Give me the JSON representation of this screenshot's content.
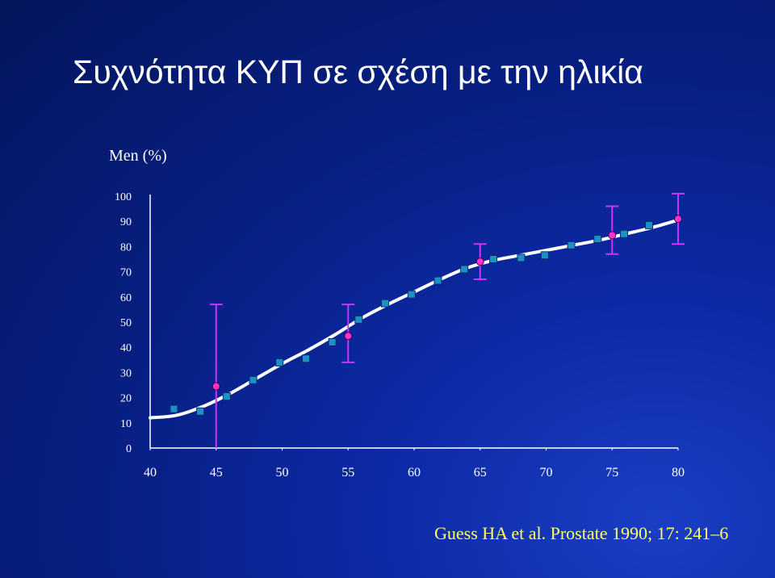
{
  "slide": {
    "title": "Συχνότητα ΚΥΠ σε σχέση με την ηλικία",
    "citation": "Guess HA et al. Prostate 1990; 17: 241–6"
  },
  "colors": {
    "background": "#0a239a",
    "curve": "#ffffff",
    "square_markers": "#1e90c8",
    "circle_markers": "#ff33cc",
    "error_bars": "#cc33ff",
    "citation_text": "#ffff66"
  },
  "chart_data": {
    "type": "scatter",
    "ylabel": "Men (%)",
    "xlabel": "",
    "xlim": [
      40,
      80
    ],
    "ylim": [
      0,
      100
    ],
    "x_ticks": [
      40,
      45,
      50,
      55,
      60,
      65,
      70,
      75,
      80
    ],
    "y_ticks": [
      0,
      10,
      20,
      30,
      40,
      50,
      60,
      70,
      80,
      90,
      100
    ],
    "grid": false,
    "series": [
      {
        "marker": "square",
        "points": [
          {
            "x": 41.8,
            "y": 15.5
          },
          {
            "x": 43.8,
            "y": 14.5
          },
          {
            "x": 45.8,
            "y": 20.5
          },
          {
            "x": 47.8,
            "y": 27
          },
          {
            "x": 49.8,
            "y": 34
          },
          {
            "x": 51.8,
            "y": 35.5
          },
          {
            "x": 53.8,
            "y": 42
          },
          {
            "x": 55.8,
            "y": 51
          },
          {
            "x": 57.8,
            "y": 57.5
          },
          {
            "x": 59.8,
            "y": 61
          },
          {
            "x": 61.8,
            "y": 66.5
          },
          {
            "x": 63.8,
            "y": 71
          },
          {
            "x": 66.0,
            "y": 75
          },
          {
            "x": 68.1,
            "y": 75.5
          },
          {
            "x": 69.9,
            "y": 76.5
          },
          {
            "x": 71.9,
            "y": 80.5
          },
          {
            "x": 73.9,
            "y": 83
          },
          {
            "x": 75.9,
            "y": 85
          },
          {
            "x": 77.8,
            "y": 88.5
          }
        ]
      },
      {
        "marker": "circle",
        "error_bars": true,
        "points": [
          {
            "x": 45.0,
            "y": 24.5,
            "low": 0,
            "high": 57
          },
          {
            "x": 55.0,
            "y": 44.5,
            "low": 34,
            "high": 57
          },
          {
            "x": 65.0,
            "y": 74,
            "low": 67,
            "high": 81
          },
          {
            "x": 75.0,
            "y": 84.5,
            "low": 77,
            "high": 96
          },
          {
            "x": 80.0,
            "y": 91,
            "low": 81,
            "high": 101
          }
        ]
      },
      {
        "type": "line",
        "smooth": true,
        "points": [
          {
            "x": 40,
            "y": 12
          },
          {
            "x": 42,
            "y": 13
          },
          {
            "x": 44,
            "y": 16.5
          },
          {
            "x": 46,
            "y": 21.5
          },
          {
            "x": 48,
            "y": 27.5
          },
          {
            "x": 50,
            "y": 33.5
          },
          {
            "x": 52,
            "y": 39
          },
          {
            "x": 54,
            "y": 45
          },
          {
            "x": 56,
            "y": 51.5
          },
          {
            "x": 58,
            "y": 57
          },
          {
            "x": 60,
            "y": 62
          },
          {
            "x": 62,
            "y": 67
          },
          {
            "x": 64,
            "y": 71.5
          },
          {
            "x": 66,
            "y": 74.5
          },
          {
            "x": 68,
            "y": 76.5
          },
          {
            "x": 70,
            "y": 78.5
          },
          {
            "x": 72,
            "y": 80.5
          },
          {
            "x": 74,
            "y": 82.5
          },
          {
            "x": 76,
            "y": 85
          },
          {
            "x": 78,
            "y": 87.5
          },
          {
            "x": 80,
            "y": 90.5
          }
        ]
      }
    ]
  }
}
